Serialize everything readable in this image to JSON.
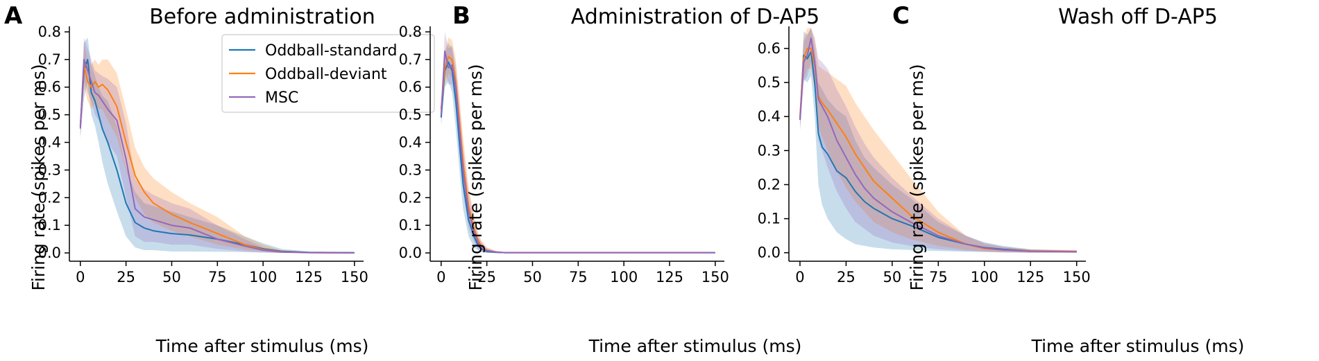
{
  "chart_data": [
    {
      "panel": "A",
      "type": "line",
      "title": "Before administration",
      "xlabel": "Time after stimulus (ms)",
      "ylabel": "Firing rate (spikes per ms)",
      "xlim": [
        -6,
        155
      ],
      "ylim": [
        -0.03,
        0.82
      ],
      "xticks": [
        0,
        25,
        50,
        75,
        100,
        125,
        150
      ],
      "yticks": [
        0.0,
        0.1,
        0.2,
        0.3,
        0.4,
        0.5,
        0.6,
        0.7,
        0.8
      ],
      "grid": false,
      "legend": "top-right",
      "x": [
        0,
        2,
        4,
        6,
        8,
        10,
        12,
        15,
        20,
        25,
        30,
        35,
        40,
        50,
        60,
        75,
        90,
        100,
        110,
        125,
        150
      ],
      "series": [
        {
          "name": "Oddball-standard",
          "color": "#1f77b4",
          "values": [
            0.46,
            0.66,
            0.7,
            0.58,
            0.55,
            0.5,
            0.45,
            0.4,
            0.3,
            0.18,
            0.11,
            0.09,
            0.08,
            0.07,
            0.065,
            0.05,
            0.03,
            0.015,
            0.006,
            0.002,
            0.001
          ],
          "lower": [
            0.42,
            0.56,
            0.62,
            0.5,
            0.46,
            0.4,
            0.33,
            0.25,
            0.15,
            0.06,
            0.02,
            0.01,
            0.01,
            0.005,
            0.005,
            0.004,
            0.003,
            0.001,
            0.0,
            0.0,
            0.0
          ],
          "upper": [
            0.5,
            0.76,
            0.78,
            0.68,
            0.64,
            0.6,
            0.57,
            0.55,
            0.46,
            0.31,
            0.22,
            0.18,
            0.17,
            0.15,
            0.13,
            0.1,
            0.06,
            0.035,
            0.015,
            0.005,
            0.002
          ]
        },
        {
          "name": "Oddball-deviant",
          "color": "#ff7f0e",
          "values": [
            0.46,
            0.68,
            0.62,
            0.6,
            0.62,
            0.6,
            0.61,
            0.59,
            0.53,
            0.4,
            0.28,
            0.22,
            0.18,
            0.14,
            0.11,
            0.07,
            0.03,
            0.012,
            0.004,
            0.001,
            0.0
          ],
          "lower": [
            0.43,
            0.6,
            0.55,
            0.52,
            0.54,
            0.52,
            0.52,
            0.48,
            0.42,
            0.3,
            0.2,
            0.14,
            0.11,
            0.08,
            0.06,
            0.03,
            0.012,
            0.005,
            0.001,
            0.0,
            0.0
          ],
          "upper": [
            0.49,
            0.76,
            0.7,
            0.68,
            0.7,
            0.68,
            0.7,
            0.7,
            0.65,
            0.52,
            0.38,
            0.31,
            0.27,
            0.22,
            0.18,
            0.13,
            0.06,
            0.03,
            0.01,
            0.003,
            0.001
          ]
        },
        {
          "name": "MSC",
          "color": "#9467bd",
          "values": [
            0.45,
            0.7,
            0.66,
            0.62,
            0.58,
            0.57,
            0.55,
            0.52,
            0.48,
            0.34,
            0.16,
            0.13,
            0.12,
            0.1,
            0.09,
            0.05,
            0.025,
            0.01,
            0.003,
            0.001,
            0.0
          ],
          "lower": [
            0.41,
            0.62,
            0.58,
            0.55,
            0.5,
            0.48,
            0.45,
            0.4,
            0.35,
            0.2,
            0.06,
            0.04,
            0.04,
            0.03,
            0.03,
            0.015,
            0.005,
            0.002,
            0.0,
            0.0,
            0.0
          ],
          "upper": [
            0.49,
            0.78,
            0.74,
            0.7,
            0.66,
            0.65,
            0.64,
            0.63,
            0.6,
            0.47,
            0.27,
            0.23,
            0.21,
            0.18,
            0.16,
            0.1,
            0.05,
            0.02,
            0.008,
            0.002,
            0.001
          ]
        }
      ]
    },
    {
      "panel": "B",
      "type": "line",
      "title": "Administration of D-AP5",
      "xlabel": "Time after stimulus (ms)",
      "ylabel": "Firing rate (spikes per ms)",
      "xlim": [
        -6,
        155
      ],
      "ylim": [
        -0.03,
        0.82
      ],
      "xticks": [
        0,
        25,
        50,
        75,
        100,
        125,
        150
      ],
      "yticks": [
        0.0,
        0.1,
        0.2,
        0.3,
        0.4,
        0.5,
        0.6,
        0.7,
        0.8
      ],
      "grid": false,
      "x": [
        0,
        2,
        4,
        6,
        8,
        10,
        12,
        15,
        18,
        20,
        22,
        25,
        30,
        35,
        50,
        75,
        100,
        125,
        150
      ],
      "series": [
        {
          "name": "Oddball-standard",
          "color": "#1f77b4",
          "values": [
            0.49,
            0.66,
            0.69,
            0.66,
            0.55,
            0.4,
            0.25,
            0.12,
            0.06,
            0.03,
            0.015,
            0.005,
            0.002,
            0.001,
            0.001,
            0.001,
            0.001,
            0.001,
            0.001
          ],
          "lower": [
            0.46,
            0.6,
            0.62,
            0.58,
            0.45,
            0.3,
            0.16,
            0.06,
            0.02,
            0.01,
            0.003,
            0.0,
            0.0,
            0.0,
            0.0,
            0.0,
            0.0,
            0.0,
            0.0
          ],
          "upper": [
            0.52,
            0.72,
            0.76,
            0.74,
            0.65,
            0.5,
            0.34,
            0.18,
            0.1,
            0.06,
            0.03,
            0.012,
            0.005,
            0.003,
            0.003,
            0.003,
            0.003,
            0.003,
            0.003
          ]
        },
        {
          "name": "Oddball-deviant",
          "color": "#ff7f0e",
          "values": [
            0.52,
            0.67,
            0.71,
            0.7,
            0.62,
            0.48,
            0.33,
            0.17,
            0.09,
            0.05,
            0.025,
            0.01,
            0.003,
            0.001,
            0.001,
            0.001,
            0.001,
            0.001,
            0.001
          ],
          "lower": [
            0.49,
            0.61,
            0.65,
            0.63,
            0.54,
            0.39,
            0.25,
            0.11,
            0.05,
            0.02,
            0.008,
            0.002,
            0.0,
            0.0,
            0.0,
            0.0,
            0.0,
            0.0,
            0.0
          ],
          "upper": [
            0.55,
            0.73,
            0.78,
            0.77,
            0.7,
            0.57,
            0.42,
            0.24,
            0.14,
            0.08,
            0.045,
            0.02,
            0.007,
            0.003,
            0.003,
            0.003,
            0.003,
            0.003,
            0.003
          ]
        },
        {
          "name": "MSC",
          "color": "#9467bd",
          "values": [
            0.5,
            0.73,
            0.67,
            0.68,
            0.6,
            0.45,
            0.3,
            0.15,
            0.08,
            0.04,
            0.02,
            0.008,
            0.003,
            0.001,
            0.001,
            0.001,
            0.001,
            0.001,
            0.001
          ],
          "lower": [
            0.47,
            0.66,
            0.61,
            0.61,
            0.52,
            0.36,
            0.22,
            0.09,
            0.04,
            0.015,
            0.006,
            0.001,
            0.0,
            0.0,
            0.0,
            0.0,
            0.0,
            0.0,
            0.0
          ],
          "upper": [
            0.53,
            0.8,
            0.74,
            0.75,
            0.68,
            0.54,
            0.39,
            0.22,
            0.12,
            0.07,
            0.04,
            0.018,
            0.007,
            0.003,
            0.003,
            0.003,
            0.003,
            0.003,
            0.003
          ]
        }
      ]
    },
    {
      "panel": "C",
      "type": "line",
      "title": "Wash off D-AP5",
      "xlabel": "Time after stimulus (ms)",
      "ylabel": "Firing rate (spikes per ms)",
      "xlim": [
        -6,
        155
      ],
      "ylim": [
        -0.025,
        0.665
      ],
      "xticks": [
        0,
        25,
        50,
        75,
        100,
        125,
        150
      ],
      "yticks": [
        0.0,
        0.1,
        0.2,
        0.3,
        0.4,
        0.5,
        0.6
      ],
      "grid": false,
      "x": [
        0,
        2,
        4,
        6,
        8,
        10,
        12,
        15,
        20,
        25,
        30,
        35,
        40,
        50,
        60,
        75,
        90,
        100,
        110,
        125,
        150
      ],
      "series": [
        {
          "name": "Oddball-standard",
          "color": "#1f77b4",
          "values": [
            0.39,
            0.58,
            0.57,
            0.59,
            0.5,
            0.35,
            0.31,
            0.29,
            0.24,
            0.22,
            0.18,
            0.15,
            0.13,
            0.1,
            0.08,
            0.045,
            0.025,
            0.015,
            0.01,
            0.005,
            0.003
          ],
          "lower": [
            0.36,
            0.51,
            0.5,
            0.52,
            0.4,
            0.2,
            0.14,
            0.1,
            0.06,
            0.04,
            0.025,
            0.02,
            0.015,
            0.01,
            0.008,
            0.005,
            0.003,
            0.002,
            0.001,
            0.0,
            0.0
          ],
          "upper": [
            0.42,
            0.65,
            0.64,
            0.66,
            0.6,
            0.5,
            0.48,
            0.45,
            0.42,
            0.4,
            0.33,
            0.28,
            0.25,
            0.2,
            0.16,
            0.09,
            0.05,
            0.03,
            0.02,
            0.01,
            0.006
          ]
        },
        {
          "name": "Oddball-deviant",
          "color": "#ff7f0e",
          "values": [
            0.4,
            0.57,
            0.6,
            0.6,
            0.55,
            0.46,
            0.44,
            0.42,
            0.38,
            0.34,
            0.29,
            0.25,
            0.21,
            0.16,
            0.11,
            0.06,
            0.025,
            0.012,
            0.008,
            0.005,
            0.004
          ],
          "lower": [
            0.37,
            0.51,
            0.54,
            0.54,
            0.48,
            0.37,
            0.34,
            0.3,
            0.24,
            0.19,
            0.15,
            0.12,
            0.09,
            0.06,
            0.04,
            0.02,
            0.008,
            0.004,
            0.002,
            0.001,
            0.0
          ],
          "upper": [
            0.43,
            0.63,
            0.66,
            0.66,
            0.63,
            0.55,
            0.54,
            0.53,
            0.51,
            0.49,
            0.44,
            0.4,
            0.36,
            0.29,
            0.22,
            0.12,
            0.05,
            0.025,
            0.016,
            0.01,
            0.008
          ]
        },
        {
          "name": "MSC",
          "color": "#9467bd",
          "values": [
            0.39,
            0.56,
            0.58,
            0.63,
            0.56,
            0.45,
            0.43,
            0.4,
            0.33,
            0.28,
            0.23,
            0.19,
            0.16,
            0.12,
            0.09,
            0.05,
            0.025,
            0.014,
            0.008,
            0.004,
            0.003
          ],
          "lower": [
            0.36,
            0.5,
            0.52,
            0.56,
            0.48,
            0.33,
            0.3,
            0.25,
            0.18,
            0.13,
            0.09,
            0.07,
            0.05,
            0.03,
            0.02,
            0.01,
            0.005,
            0.003,
            0.001,
            0.0,
            0.0
          ],
          "upper": [
            0.42,
            0.62,
            0.64,
            0.66,
            0.63,
            0.57,
            0.56,
            0.54,
            0.48,
            0.43,
            0.37,
            0.32,
            0.28,
            0.22,
            0.17,
            0.1,
            0.05,
            0.03,
            0.018,
            0.009,
            0.006
          ]
        }
      ]
    }
  ]
}
